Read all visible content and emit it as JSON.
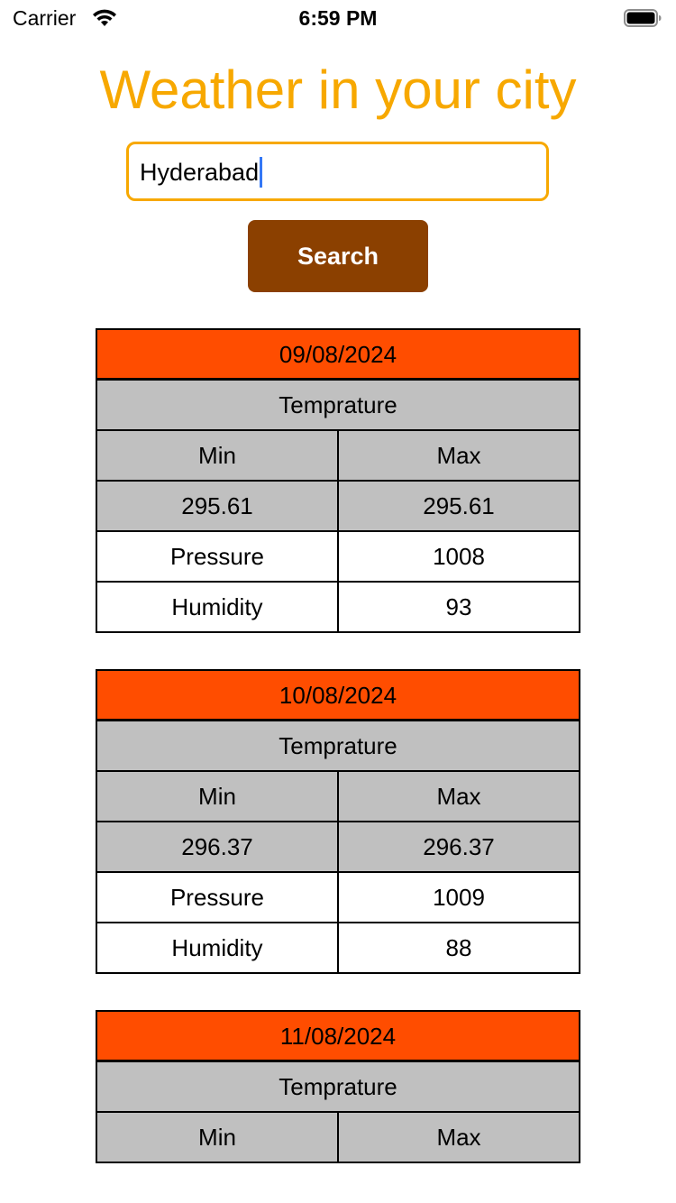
{
  "status_bar": {
    "carrier": "Carrier",
    "time": "6:59 PM"
  },
  "title": "Weather in your city",
  "search": {
    "value": "Hyderabad",
    "button_label": "Search"
  },
  "colors": {
    "title": "#f7a800",
    "input_border": "#f7a800",
    "button_bg": "#8b4000",
    "date_header_bg": "#ff4d00",
    "temperature_bg": "#c0c0c0"
  },
  "forecast": [
    {
      "date": "09/08/2024",
      "temperature_label": "Temprature",
      "min_label": "Min",
      "max_label": "Max",
      "min": "295.61",
      "max": "295.61",
      "pressure_label": "Pressure",
      "pressure": "1008",
      "humidity_label": "Humidity",
      "humidity": "93"
    },
    {
      "date": "10/08/2024",
      "temperature_label": "Temprature",
      "min_label": "Min",
      "max_label": "Max",
      "min": "296.37",
      "max": "296.37",
      "pressure_label": "Pressure",
      "pressure": "1009",
      "humidity_label": "Humidity",
      "humidity": "88"
    },
    {
      "date": "11/08/2024",
      "temperature_label": "Temprature",
      "min_label": "Min",
      "max_label": "Max"
    }
  ]
}
